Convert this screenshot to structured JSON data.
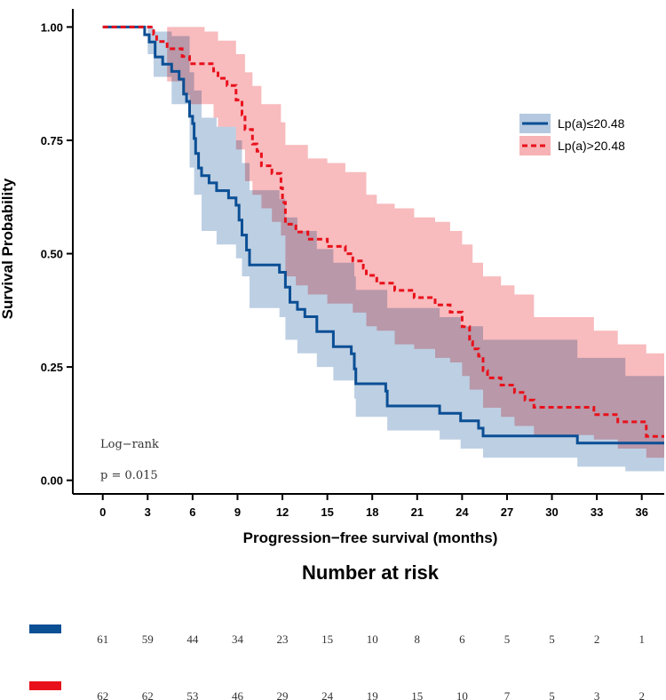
{
  "chart_data": {
    "type": "line",
    "subtype": "kaplan-meier",
    "title": "",
    "xlabel": "Progression−free survival (months)",
    "ylabel": "Survival Probability",
    "xlim": [
      -2,
      37.5
    ],
    "ylim": [
      -0.03,
      1.04
    ],
    "x_ticks": [
      0,
      3,
      6,
      9,
      12,
      15,
      18,
      21,
      24,
      27,
      30,
      33,
      36
    ],
    "x_tick_labels": [
      "0",
      "3",
      "6",
      "9",
      "12",
      "15",
      "18",
      "21",
      "24",
      "27",
      "30",
      "33",
      "36"
    ],
    "y_ticks": [
      0,
      0.25,
      0.5,
      0.75,
      1.0
    ],
    "y_tick_labels": [
      "0.00",
      "0.25",
      "0.50",
      "0.75",
      "1.00"
    ],
    "legend_position": "right",
    "series": [
      {
        "name": "Lp(a)≤20.48",
        "color": "#0b4f95",
        "band_color": "#a7bfda",
        "line_style": "solid",
        "steps": [
          [
            0,
            1.0
          ],
          [
            2.6,
            1.0
          ],
          [
            2.8,
            0.983
          ],
          [
            3.1,
            0.967
          ],
          [
            3.5,
            0.934
          ],
          [
            4.0,
            0.918
          ],
          [
            4.6,
            0.902
          ],
          [
            5.1,
            0.885
          ],
          [
            5.4,
            0.852
          ],
          [
            5.6,
            0.836
          ],
          [
            5.8,
            0.803
          ],
          [
            6.0,
            0.787
          ],
          [
            6.1,
            0.754
          ],
          [
            6.2,
            0.721
          ],
          [
            6.4,
            0.689
          ],
          [
            6.6,
            0.672
          ],
          [
            7.1,
            0.656
          ],
          [
            7.6,
            0.639
          ],
          [
            8.4,
            0.623
          ],
          [
            8.9,
            0.607
          ],
          [
            9.1,
            0.574
          ],
          [
            9.3,
            0.541
          ],
          [
            9.6,
            0.508
          ],
          [
            9.8,
            0.475
          ],
          [
            11.8,
            0.459
          ],
          [
            12.2,
            0.426
          ],
          [
            12.5,
            0.393
          ],
          [
            13.0,
            0.377
          ],
          [
            13.5,
            0.361
          ],
          [
            14.3,
            0.328
          ],
          [
            15.4,
            0.295
          ],
          [
            16.6,
            0.279
          ],
          [
            16.8,
            0.246
          ],
          [
            16.9,
            0.213
          ],
          [
            18.9,
            0.197
          ],
          [
            19.0,
            0.164
          ],
          [
            22.5,
            0.148
          ],
          [
            23.9,
            0.131
          ],
          [
            25.1,
            0.115
          ],
          [
            25.4,
            0.098
          ],
          [
            31.7,
            0.082
          ],
          [
            37.5,
            0.082
          ]
        ],
        "upper": [
          [
            0,
            1.0
          ],
          [
            2.6,
            1.0
          ],
          [
            3.0,
            1.0
          ],
          [
            3.4,
            0.99
          ],
          [
            4.6,
            0.98
          ],
          [
            5.8,
            0.9
          ],
          [
            6.1,
            0.86
          ],
          [
            6.6,
            0.8
          ],
          [
            7.6,
            0.78
          ],
          [
            8.9,
            0.75
          ],
          [
            9.3,
            0.7
          ],
          [
            9.8,
            0.64
          ],
          [
            11.8,
            0.62
          ],
          [
            12.2,
            0.58
          ],
          [
            13.0,
            0.55
          ],
          [
            14.3,
            0.51
          ],
          [
            15.4,
            0.48
          ],
          [
            16.8,
            0.45
          ],
          [
            16.9,
            0.42
          ],
          [
            19.0,
            0.38
          ],
          [
            22.5,
            0.36
          ],
          [
            23.9,
            0.34
          ],
          [
            25.4,
            0.31
          ],
          [
            31.7,
            0.27
          ],
          [
            34.9,
            0.23
          ],
          [
            37.5,
            0.23
          ]
        ],
        "lower": [
          [
            0,
            1.0
          ],
          [
            2.6,
            1.0
          ],
          [
            3.0,
            0.94
          ],
          [
            3.4,
            0.89
          ],
          [
            4.6,
            0.83
          ],
          [
            5.8,
            0.69
          ],
          [
            6.1,
            0.63
          ],
          [
            6.6,
            0.55
          ],
          [
            7.6,
            0.52
          ],
          [
            8.9,
            0.49
          ],
          [
            9.3,
            0.45
          ],
          [
            9.8,
            0.38
          ],
          [
            11.8,
            0.36
          ],
          [
            12.2,
            0.31
          ],
          [
            13.0,
            0.28
          ],
          [
            14.3,
            0.25
          ],
          [
            15.4,
            0.22
          ],
          [
            16.8,
            0.18
          ],
          [
            16.9,
            0.14
          ],
          [
            19.0,
            0.11
          ],
          [
            22.5,
            0.09
          ],
          [
            23.9,
            0.07
          ],
          [
            25.4,
            0.05
          ],
          [
            31.7,
            0.03
          ],
          [
            34.9,
            0.02
          ],
          [
            37.5,
            0.02
          ]
        ]
      },
      {
        "name": "Lp(a)>20.48",
        "color": "#e8111b",
        "band_color": "#f6a4a8",
        "line_style": "dashed",
        "steps": [
          [
            0,
            1.0
          ],
          [
            3.2,
            1.0
          ],
          [
            3.4,
            0.984
          ],
          [
            3.6,
            0.968
          ],
          [
            4.3,
            0.952
          ],
          [
            5.3,
            0.935
          ],
          [
            5.8,
            0.919
          ],
          [
            7.4,
            0.903
          ],
          [
            7.7,
            0.887
          ],
          [
            8.3,
            0.871
          ],
          [
            8.9,
            0.839
          ],
          [
            9.3,
            0.806
          ],
          [
            9.5,
            0.774
          ],
          [
            10.0,
            0.742
          ],
          [
            10.3,
            0.726
          ],
          [
            10.6,
            0.694
          ],
          [
            11.3,
            0.677
          ],
          [
            11.9,
            0.645
          ],
          [
            12.0,
            0.613
          ],
          [
            12.2,
            0.565
          ],
          [
            12.9,
            0.548
          ],
          [
            13.7,
            0.532
          ],
          [
            15.0,
            0.516
          ],
          [
            16.2,
            0.5
          ],
          [
            16.7,
            0.484
          ],
          [
            17.4,
            0.468
          ],
          [
            17.6,
            0.452
          ],
          [
            18.3,
            0.435
          ],
          [
            19.5,
            0.419
          ],
          [
            20.8,
            0.403
          ],
          [
            22.2,
            0.387
          ],
          [
            23.2,
            0.371
          ],
          [
            24.0,
            0.339
          ],
          [
            24.5,
            0.306
          ],
          [
            24.7,
            0.29
          ],
          [
            25.1,
            0.274
          ],
          [
            25.4,
            0.242
          ],
          [
            25.7,
            0.226
          ],
          [
            26.6,
            0.21
          ],
          [
            27.5,
            0.194
          ],
          [
            28.2,
            0.177
          ],
          [
            28.8,
            0.161
          ],
          [
            32.8,
            0.145
          ],
          [
            34.4,
            0.129
          ],
          [
            36.3,
            0.097
          ],
          [
            37.5,
            0.097
          ]
        ],
        "upper": [
          [
            0,
            1.0
          ],
          [
            3.2,
            1.0
          ],
          [
            5.8,
            1.0
          ],
          [
            6.8,
            0.99
          ],
          [
            7.7,
            0.97
          ],
          [
            8.9,
            0.94
          ],
          [
            9.5,
            0.9
          ],
          [
            10.0,
            0.87
          ],
          [
            10.6,
            0.83
          ],
          [
            11.9,
            0.79
          ],
          [
            12.2,
            0.74
          ],
          [
            13.7,
            0.71
          ],
          [
            15.0,
            0.7
          ],
          [
            16.2,
            0.68
          ],
          [
            17.6,
            0.63
          ],
          [
            18.3,
            0.61
          ],
          [
            19.5,
            0.6
          ],
          [
            20.8,
            0.58
          ],
          [
            22.2,
            0.57
          ],
          [
            23.2,
            0.55
          ],
          [
            24.0,
            0.52
          ],
          [
            24.7,
            0.48
          ],
          [
            25.4,
            0.45
          ],
          [
            26.6,
            0.43
          ],
          [
            27.5,
            0.41
          ],
          [
            28.8,
            0.36
          ],
          [
            32.8,
            0.33
          ],
          [
            34.4,
            0.3
          ],
          [
            36.3,
            0.28
          ],
          [
            37.5,
            0.28
          ]
        ],
        "lower": [
          [
            0,
            1.0
          ],
          [
            3.2,
            1.0
          ],
          [
            4.3,
            0.88
          ],
          [
            5.3,
            0.85
          ],
          [
            5.8,
            0.83
          ],
          [
            7.4,
            0.8
          ],
          [
            7.7,
            0.78
          ],
          [
            8.9,
            0.73
          ],
          [
            9.5,
            0.66
          ],
          [
            10.0,
            0.63
          ],
          [
            10.6,
            0.6
          ],
          [
            11.3,
            0.57
          ],
          [
            11.9,
            0.54
          ],
          [
            12.2,
            0.45
          ],
          [
            12.9,
            0.43
          ],
          [
            13.7,
            0.41
          ],
          [
            15.0,
            0.39
          ],
          [
            16.7,
            0.37
          ],
          [
            17.6,
            0.34
          ],
          [
            18.3,
            0.33
          ],
          [
            19.5,
            0.3
          ],
          [
            20.8,
            0.29
          ],
          [
            22.2,
            0.27
          ],
          [
            23.2,
            0.26
          ],
          [
            24.0,
            0.23
          ],
          [
            24.5,
            0.2
          ],
          [
            25.4,
            0.16
          ],
          [
            26.6,
            0.14
          ],
          [
            27.5,
            0.12
          ],
          [
            28.8,
            0.1
          ],
          [
            32.8,
            0.09
          ],
          [
            34.4,
            0.07
          ],
          [
            36.3,
            0.05
          ],
          [
            37.5,
            0.05
          ]
        ]
      }
    ],
    "annotations": [
      "Log−rank",
      "p = 0.015"
    ],
    "risk_table": {
      "title": "Number at risk",
      "times": [
        0,
        3,
        6,
        9,
        12,
        15,
        18,
        21,
        24,
        27,
        30,
        33,
        36
      ],
      "rows": [
        {
          "name": "Lp(a)≤20.48",
          "color": "#0b4f95",
          "values": [
            "61",
            "59",
            "44",
            "34",
            "23",
            "15",
            "10",
            "8",
            "6",
            "5",
            "5",
            "2",
            "1"
          ]
        },
        {
          "name": "Lp(a)>20.48",
          "color": "#e8111b",
          "values": [
            "62",
            "62",
            "53",
            "46",
            "29",
            "24",
            "19",
            "15",
            "10",
            "7",
            "5",
            "3",
            "2"
          ]
        }
      ]
    }
  }
}
